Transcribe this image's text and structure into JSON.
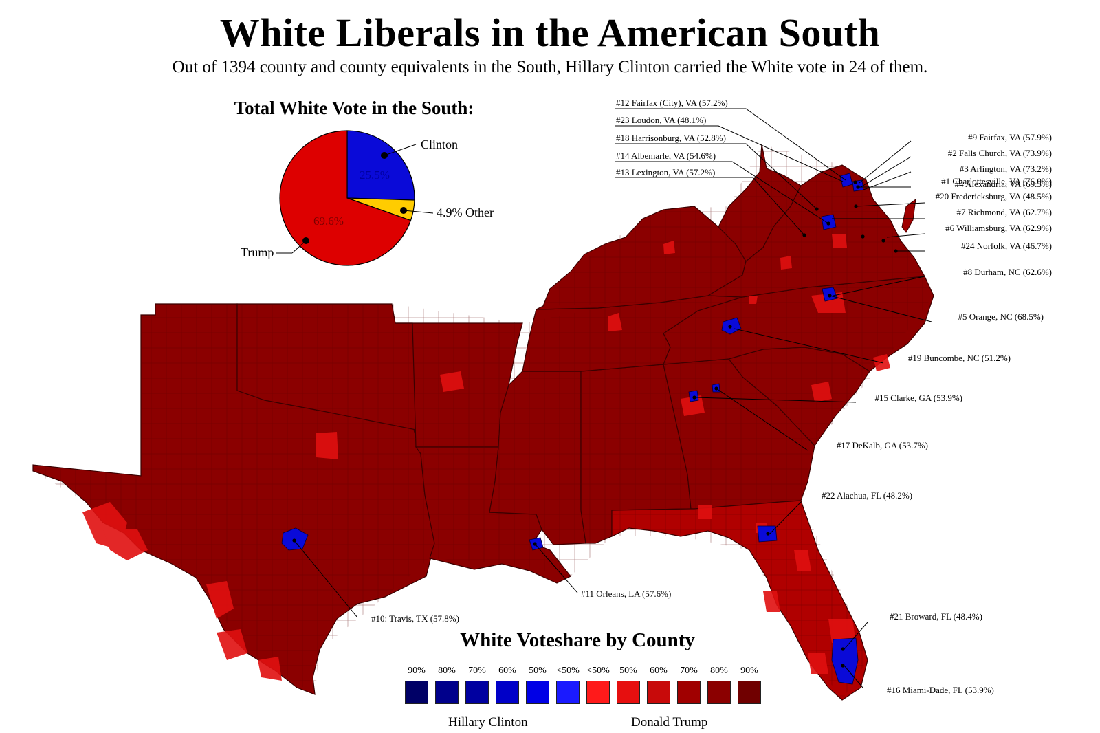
{
  "title": "White Liberals in the American South",
  "subtitle": "Out of 1394 county and county equivalents in the South, Hillary Clinton carried the White vote in 24 of them.",
  "pie": {
    "title": "Total White Vote in the South:",
    "slices": [
      {
        "name": "Clinton",
        "value": 25.5,
        "label": "25.5%",
        "color": "#0a0ad8"
      },
      {
        "name": "Other",
        "value": 4.9,
        "label": "4.9% Other",
        "color": "#ffcc00"
      },
      {
        "name": "Trump",
        "value": 69.6,
        "label": "69.6%",
        "color": "#dd0000"
      }
    ],
    "clinton_label": "Clinton",
    "trump_label": "Trump",
    "other_label": "4.9% Other"
  },
  "legend": {
    "title": "White Voteshare by County",
    "clinton_label": "Hillary Clinton",
    "trump_label": "Donald Trump",
    "clinton_levels": [
      {
        "pct": "90%",
        "color": "#000066"
      },
      {
        "pct": "80%",
        "color": "#00008b"
      },
      {
        "pct": "70%",
        "color": "#0000a0"
      },
      {
        "pct": "60%",
        "color": "#0000c8"
      },
      {
        "pct": "50%",
        "color": "#0000e6"
      },
      {
        "pct": "<50%",
        "color": "#1a1aff"
      }
    ],
    "trump_levels": [
      {
        "pct": "<50%",
        "color": "#ff1a1a"
      },
      {
        "pct": "50%",
        "color": "#e60f0f"
      },
      {
        "pct": "60%",
        "color": "#c80a0a"
      },
      {
        "pct": "70%",
        "color": "#a00000"
      },
      {
        "pct": "80%",
        "color": "#8b0000"
      },
      {
        "pct": "90%",
        "color": "#700000"
      }
    ]
  },
  "counties": [
    {
      "rank": "#1",
      "label": "#1 Charlottesville, VA (76.0%)"
    },
    {
      "rank": "#2",
      "label": "#2 Falls Church, VA (73.9%)"
    },
    {
      "rank": "#3",
      "label": "#3 Arlington, VA (73.2%)"
    },
    {
      "rank": "#4",
      "label": "#4 Alexandria, VA (69.5%)"
    },
    {
      "rank": "#5",
      "label": "#5 Orange, NC (68.5%)"
    },
    {
      "rank": "#6",
      "label": "#6 Williamsburg, VA (62.9%)"
    },
    {
      "rank": "#7",
      "label": "#7 Richmond, VA (62.7%)"
    },
    {
      "rank": "#8",
      "label": "#8 Durham, NC (62.6%)"
    },
    {
      "rank": "#9",
      "label": "#9 Fairfax, VA (57.9%)"
    },
    {
      "rank": "#10",
      "label": "#10: Travis, TX (57.8%)"
    },
    {
      "rank": "#11",
      "label": "#11 Orleans, LA (57.6%)"
    },
    {
      "rank": "#12",
      "label": "#12 Fairfax (City), VA (57.2%)"
    },
    {
      "rank": "#13",
      "label": "#13 Lexington, VA (57.2%)"
    },
    {
      "rank": "#14",
      "label": "#14 Albemarle, VA (54.6%)"
    },
    {
      "rank": "#15",
      "label": "#15 Clarke, GA (53.9%)"
    },
    {
      "rank": "#16",
      "label": "#16 Miami-Dade, FL (53.9%)"
    },
    {
      "rank": "#17",
      "label": "#17 DeKalb, GA (53.7%)"
    },
    {
      "rank": "#18",
      "label": "#18 Harrisonburg, VA (52.8%)"
    },
    {
      "rank": "#19",
      "label": "#19 Buncombe, NC (51.2%)"
    },
    {
      "rank": "#20",
      "label": "#20 Fredericksburg, VA (48.5%)"
    },
    {
      "rank": "#21",
      "label": "#21 Broward, FL (48.4%)"
    },
    {
      "rank": "#22",
      "label": "#22 Alachua, FL (48.2%)"
    },
    {
      "rank": "#23",
      "label": "#23 Loudon, VA (48.1%)"
    },
    {
      "rank": "#24",
      "label": "#24 Norfolk, VA (46.7%)"
    }
  ]
}
